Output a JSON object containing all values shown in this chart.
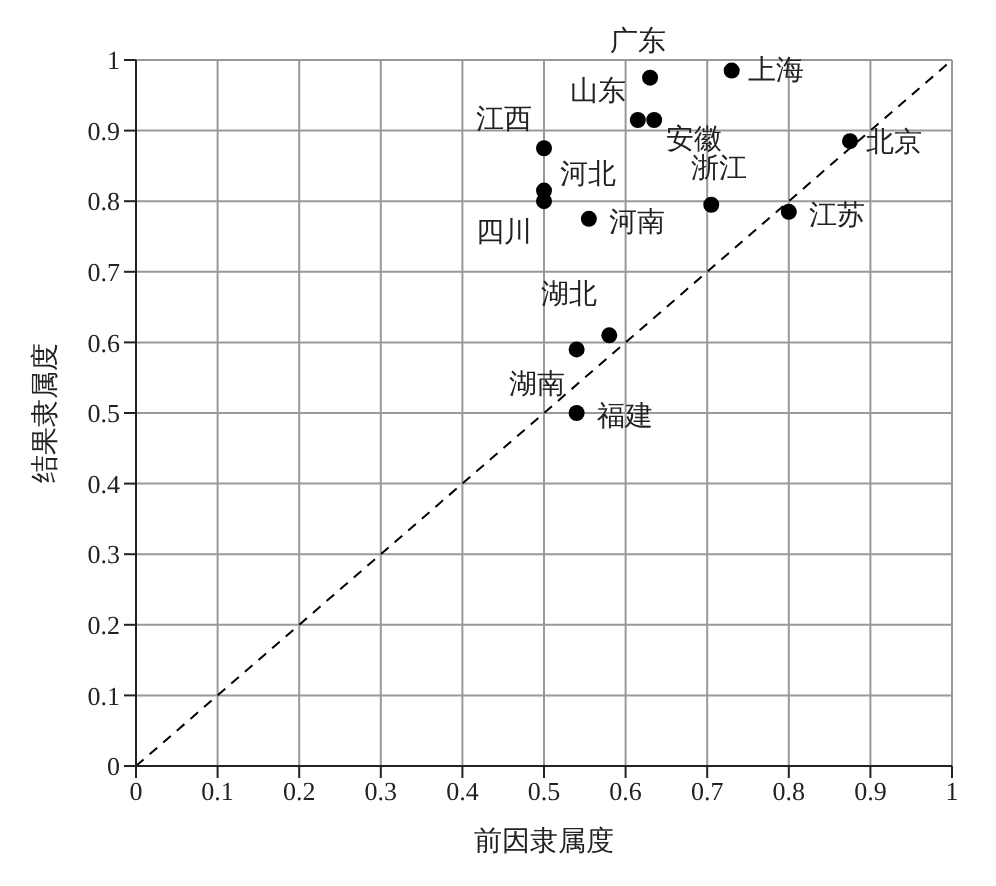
{
  "chart_data": {
    "type": "scatter",
    "xlabel": "前因隶属度",
    "ylabel": "结果隶属度",
    "xlim": [
      0,
      1
    ],
    "ylim": [
      0,
      1
    ],
    "xticks": [
      0,
      0.1,
      0.2,
      0.3,
      0.4,
      0.5,
      0.6,
      0.7,
      0.8,
      0.9,
      1
    ],
    "yticks": [
      0,
      0.1,
      0.2,
      0.3,
      0.4,
      0.5,
      0.6,
      0.7,
      0.8,
      0.9,
      1
    ],
    "grid": true,
    "series": [
      {
        "marker": "circle",
        "color": "#000000",
        "x": [
          0.63,
          0.73,
          0.615,
          0.635,
          0.5,
          0.5,
          0.5,
          0.555,
          0.705,
          0.8,
          0.875,
          0.58,
          0.54,
          0.54
        ],
        "values": [
          0.975,
          0.985,
          0.915,
          0.915,
          0.875,
          0.815,
          0.8,
          0.775,
          0.795,
          0.785,
          0.885,
          0.61,
          0.59,
          0.5
        ]
      },
      {
        "type": "line",
        "color": "#000000",
        "line_style": "dashed",
        "x": [
          0,
          1
        ],
        "values": [
          0,
          1
        ]
      }
    ],
    "annotations": [
      {
        "text": "广东",
        "x": 0.63,
        "y": 0.975
      },
      {
        "text": "上海",
        "x": 0.73,
        "y": 0.985
      },
      {
        "text": "山东",
        "x": 0.615,
        "y": 0.915
      },
      {
        "text": "安徽",
        "x": 0.635,
        "y": 0.915
      },
      {
        "text": "江西",
        "x": 0.5,
        "y": 0.875
      },
      {
        "text": "河北",
        "x": 0.5,
        "y": 0.815
      },
      {
        "text": "四川",
        "x": 0.5,
        "y": 0.8
      },
      {
        "text": "河南",
        "x": 0.555,
        "y": 0.775
      },
      {
        "text": "浙江",
        "x": 0.705,
        "y": 0.795
      },
      {
        "text": "江苏",
        "x": 0.8,
        "y": 0.785
      },
      {
        "text": "北京",
        "x": 0.875,
        "y": 0.885
      },
      {
        "text": "湖北",
        "x": 0.58,
        "y": 0.61
      },
      {
        "text": "湖南",
        "x": 0.54,
        "y": 0.59
      },
      {
        "text": "福建",
        "x": 0.54,
        "y": 0.5
      }
    ]
  }
}
